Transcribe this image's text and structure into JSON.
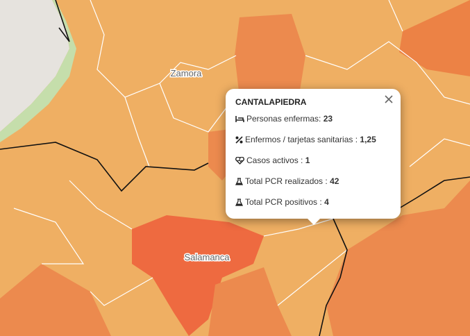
{
  "map_labels": [
    "Zamora",
    "Salamanca"
  ],
  "popup": {
    "title": "CANTALAPIEDRA",
    "rows": [
      {
        "label": "Personas enfermas:",
        "value": "23"
      },
      {
        "label": "Enfermos / tarjetas sanitarias :",
        "value": "1,25"
      },
      {
        "label": "Casos activos :",
        "value": "1"
      },
      {
        "label": "Total PCR realizados :",
        "value": "42"
      },
      {
        "label": "Total PCR positivos :",
        "value": "4"
      }
    ]
  }
}
